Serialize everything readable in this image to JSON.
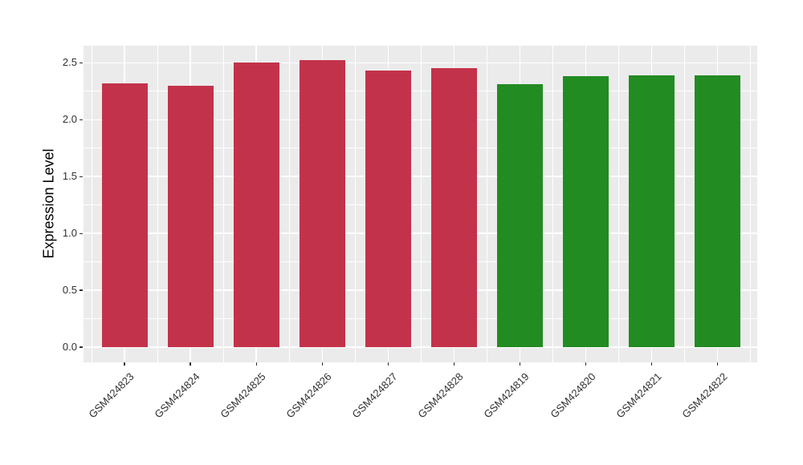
{
  "figure": {
    "background": "#FFFFFF"
  },
  "chart_data": {
    "type": "bar",
    "title": "",
    "xlabel": "",
    "ylabel": "Expression Level",
    "categories": [
      "GSM424823",
      "GSM424824",
      "GSM424825",
      "GSM424826",
      "GSM424827",
      "GSM424828",
      "GSM424819",
      "GSM424820",
      "GSM424821",
      "GSM424822"
    ],
    "values": [
      2.32,
      2.3,
      2.5,
      2.52,
      2.43,
      2.45,
      2.31,
      2.38,
      2.39,
      2.39
    ],
    "bar_colors": [
      "#C3324B",
      "#C3324B",
      "#C3324B",
      "#C3324B",
      "#C3324B",
      "#C3324B",
      "#228B22",
      "#228B22",
      "#228B22",
      "#228B22"
    ],
    "ylim": [
      0,
      2.65
    ],
    "ytick_labels": [
      "0.0",
      "0.5",
      "1.0",
      "1.5",
      "2.0",
      "2.5"
    ],
    "ytick_values": [
      0,
      0.5,
      1.0,
      1.5,
      2.0,
      2.5
    ],
    "legend_position": "none",
    "grid": {
      "panel_background": "#EBEBEB",
      "major_color": "#FFFFFF",
      "minor_color": "#FFFFFF",
      "show_major": true,
      "show_minor": true
    }
  }
}
